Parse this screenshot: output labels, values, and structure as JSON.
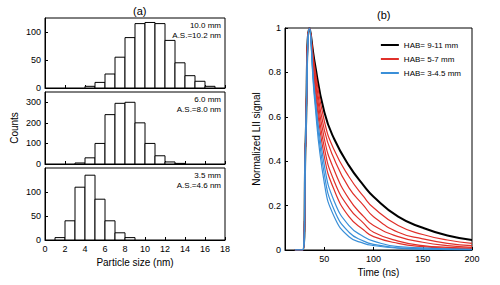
{
  "chart_data": [
    {
      "type": "histogram",
      "title": "(a)",
      "annotations": [
        "10.0 mm",
        "A.S.=10.2 nm"
      ],
      "bins": [
        4,
        5,
        6,
        7,
        8,
        9,
        10,
        11,
        12,
        13,
        14,
        15,
        16,
        17
      ],
      "counts": [
        3,
        10,
        25,
        55,
        90,
        115,
        117,
        115,
        85,
        45,
        22,
        12,
        3
      ],
      "color": "#ffffff",
      "xlim": [
        0,
        18
      ],
      "xticks": [
        0,
        2,
        4,
        6,
        8,
        10,
        12,
        14,
        16,
        18
      ],
      "ylim": [
        0,
        125
      ],
      "yticks": [
        0,
        50,
        100
      ],
      "tick_labels": "y",
      "grid": false
    },
    {
      "type": "histogram",
      "y_label": "Counts",
      "annotations": [
        "6.0 mm",
        "A.S.=8.0 nm"
      ],
      "bins": [
        3,
        4,
        5,
        6,
        7,
        8,
        9,
        10,
        11,
        12,
        13,
        14
      ],
      "counts": [
        5,
        30,
        100,
        240,
        295,
        300,
        200,
        100,
        40,
        10,
        3
      ],
      "color": "#ffffff",
      "xlim": [
        0,
        18
      ],
      "xticks": [
        0,
        2,
        4,
        6,
        8,
        10,
        12,
        14,
        16,
        18
      ],
      "ylim": [
        0,
        350
      ],
      "yticks": [
        0,
        100,
        200,
        300
      ],
      "tick_labels": "y",
      "grid": false
    },
    {
      "type": "histogram",
      "x_label": "Particle size (nm)",
      "annotations": [
        "3.5 mm",
        "A.S.=4.6 nm"
      ],
      "bins": [
        1,
        2,
        3,
        4,
        5,
        6,
        7,
        8,
        9
      ],
      "counts": [
        5,
        40,
        110,
        135,
        85,
        40,
        15,
        5
      ],
      "color": "#ffffff",
      "xlim": [
        0,
        18
      ],
      "xticks": [
        0,
        2,
        4,
        6,
        8,
        10,
        12,
        14,
        16,
        18
      ],
      "ylim": [
        0,
        150
      ],
      "yticks": [
        0,
        50,
        100
      ],
      "grid": false
    },
    {
      "type": "line",
      "title": "(b)",
      "x_label": "Time (ns)",
      "y_label": "Normalized LII signal",
      "x": [
        20,
        28,
        31,
        35,
        40,
        50,
        60,
        75,
        90,
        100,
        125,
        150,
        175,
        200
      ],
      "series": [
        {
          "name": "HAB= 9-11 mm",
          "color": "#000000",
          "values": [
            0,
            0,
            0.5,
            1,
            0.85,
            0.62,
            0.5,
            0.38,
            0.29,
            0.24,
            0.15,
            0.1,
            0.065,
            0.045
          ]
        },
        {
          "name": "HAB= 5-7 mm",
          "color": "#e0302a",
          "values": [
            0,
            0,
            0.5,
            1,
            0.83,
            0.58,
            0.45,
            0.33,
            0.24,
            0.19,
            0.11,
            0.07,
            0.045,
            0.03
          ]
        },
        {
          "name": "HAB= 5-7 mm",
          "color": "#e0302a",
          "values": [
            0,
            0,
            0.5,
            1,
            0.81,
            0.54,
            0.41,
            0.28,
            0.2,
            0.15,
            0.08,
            0.05,
            0.03,
            0.02
          ]
        },
        {
          "name": "HAB= 5-7 mm",
          "color": "#e0302a",
          "values": [
            0,
            0,
            0.5,
            1,
            0.79,
            0.5,
            0.36,
            0.23,
            0.15,
            0.11,
            0.06,
            0.035,
            0.02,
            0.012
          ]
        },
        {
          "name": "HAB= 5-7 mm",
          "color": "#e0302a",
          "values": [
            0,
            0,
            0.5,
            1,
            0.77,
            0.46,
            0.31,
            0.19,
            0.12,
            0.08,
            0.04,
            0.02,
            0.012,
            0.008
          ]
        },
        {
          "name": "HAB= 5-7 mm",
          "color": "#e0302a",
          "values": [
            0,
            0,
            0.5,
            1,
            0.75,
            0.42,
            0.27,
            0.15,
            0.09,
            0.06,
            0.03,
            0.015,
            0.008,
            0.005
          ]
        },
        {
          "name": "HAB= 3-4.5 mm",
          "color": "#3a8fd8",
          "values": [
            0,
            0,
            0.5,
            1,
            0.72,
            0.38,
            0.22,
            0.11,
            0.06,
            0.04,
            0.015,
            0.01,
            0.005,
            0.003
          ]
        },
        {
          "name": "HAB= 3-4.5 mm",
          "color": "#3a8fd8",
          "values": [
            0,
            0,
            0.5,
            1,
            0.7,
            0.34,
            0.18,
            0.08,
            0.04,
            0.025,
            0.01,
            0.005,
            0.003,
            0.002
          ]
        },
        {
          "name": "HAB= 3-4.5 mm",
          "color": "#3a8fd8",
          "values": [
            0,
            0,
            0.5,
            1,
            0.68,
            0.3,
            0.15,
            0.06,
            0.03,
            0.02,
            0.008,
            0.004,
            0.002,
            0.001
          ]
        }
      ],
      "xlim": [
        10,
        200
      ],
      "xticks": [
        50,
        100,
        150,
        200
      ],
      "ylim": [
        0,
        1
      ],
      "yticks": [
        0,
        0.2,
        0.4,
        0.6,
        0.8,
        1
      ],
      "legend": "upper right",
      "grid": false
    }
  ]
}
